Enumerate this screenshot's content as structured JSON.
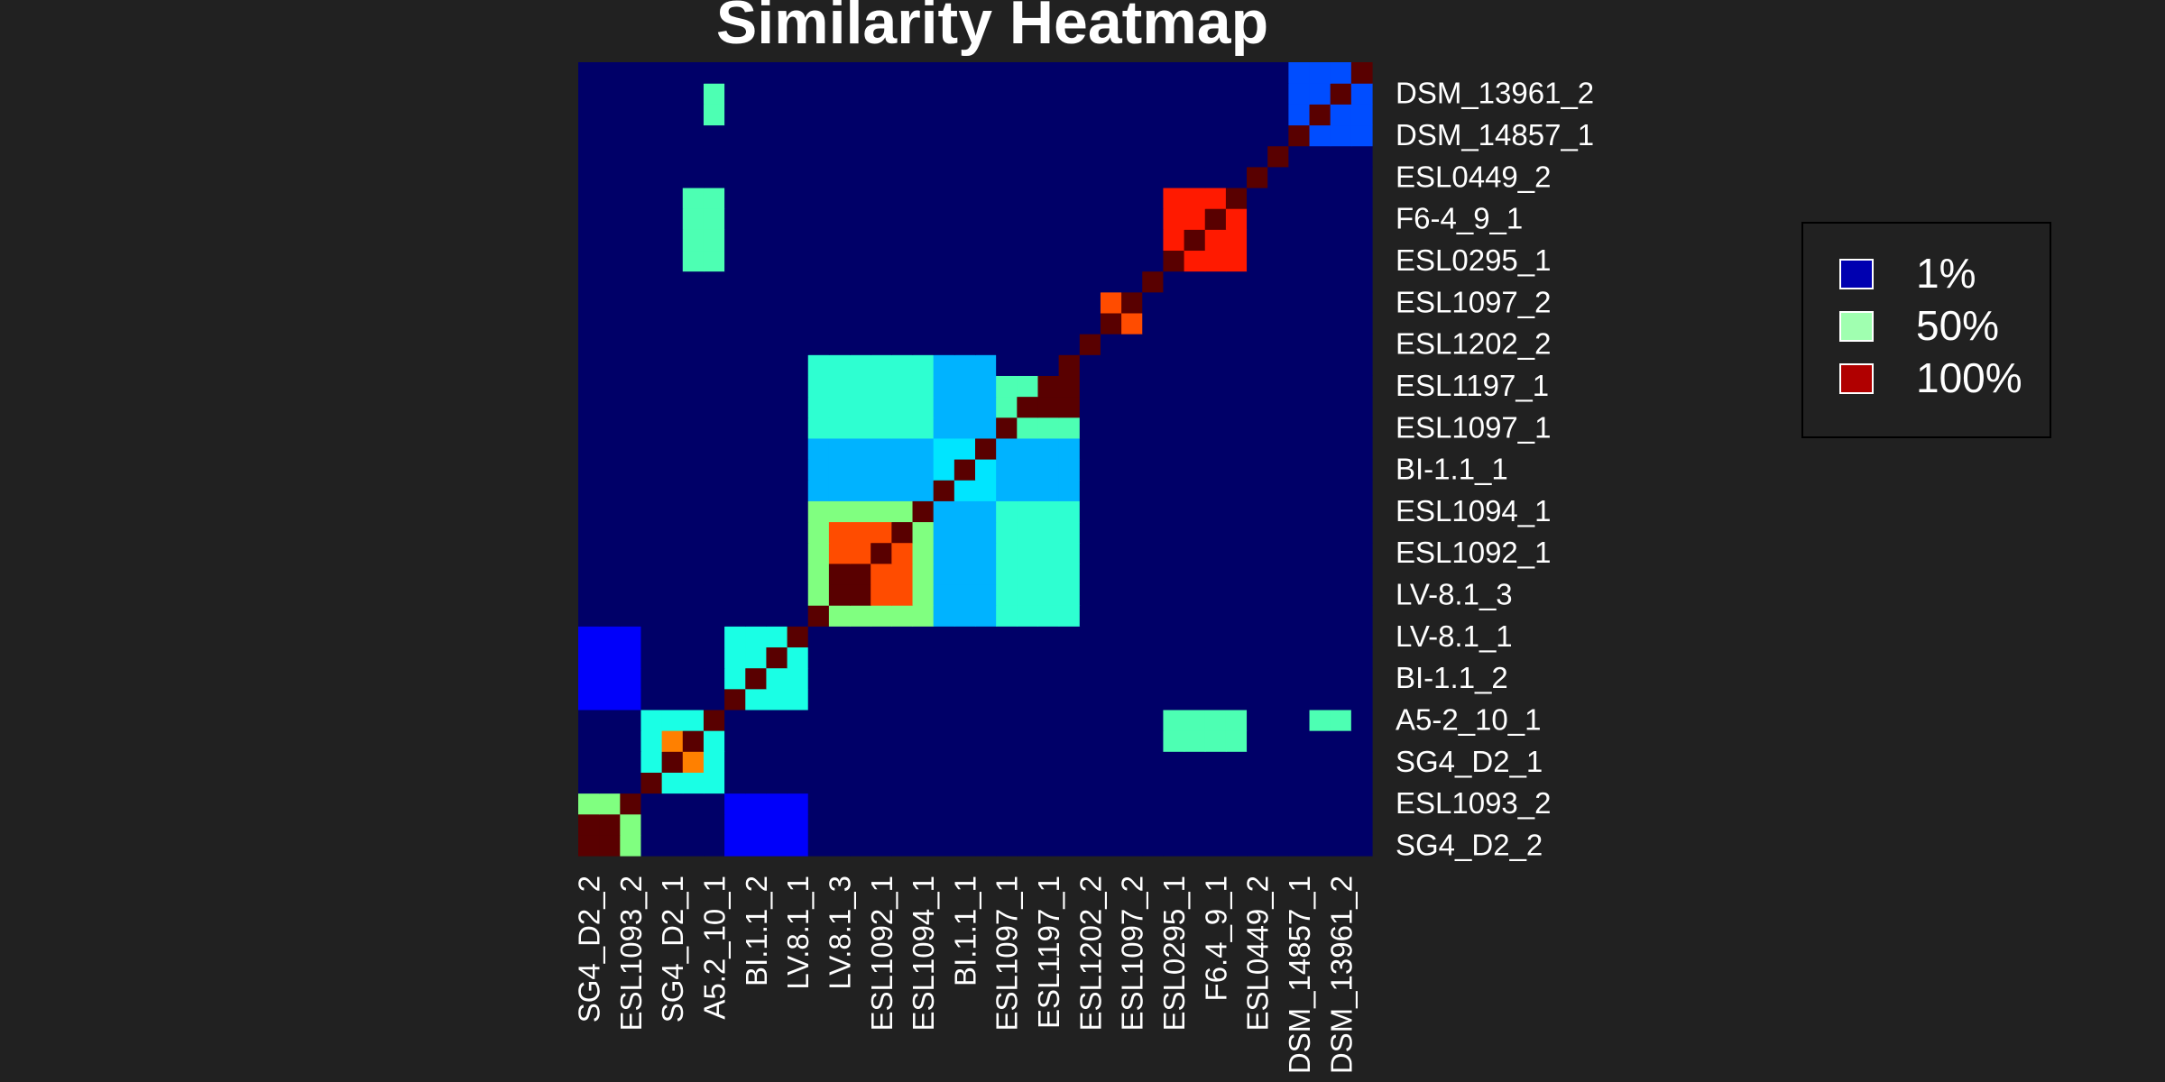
{
  "chart_data": {
    "type": "heatmap",
    "title": "Similarity Heatmap",
    "matrix_size": 38,
    "row_labels_shown": [
      "SG4_D2_2",
      "ESL1093_2",
      "SG4_D2_1",
      "A5-2_10_1",
      "BI-1.1_2",
      "LV-8.1_1",
      "LV-8.1_3",
      "ESL1092_1",
      "ESL1094_1",
      "BI-1.1_1",
      "ESL1097_1",
      "ESL1197_1",
      "ESL1202_2",
      "ESL1097_2",
      "ESL0295_1",
      "F6-4_9_1",
      "ESL0449_2",
      "DSM_14857_1",
      "DSM_13961_2"
    ],
    "col_labels_shown": [
      "SG4_D2_2",
      "ESL1093_2",
      "SG4_D2_1",
      "A5.2_10_1",
      "BI.1.1_2",
      "LV.8.1_1",
      "LV.8.1_3",
      "ESL1092_1",
      "ESL1094_1",
      "BI.1.1_1",
      "ESL1097_1",
      "ESL1197_1",
      "ESL1202_2",
      "ESL1097_2",
      "ESL0295_1",
      "F6.4_9_1",
      "ESL0449_2",
      "DSM_14857_1",
      "DSM_13961_2"
    ],
    "color_scale": {
      "low": "#0000b0",
      "mid": "#a0ffb0",
      "high": "#b00000",
      "colormap": "jet"
    },
    "blocks": [
      {
        "rows": [
          1,
          3
        ],
        "cols": [
          1,
          3
        ],
        "value": 0.5
      },
      {
        "rows": [
          1,
          2
        ],
        "cols": [
          1,
          2
        ],
        "value": 1.0
      },
      {
        "rows": [
          4,
          7
        ],
        "cols": [
          4,
          7
        ],
        "value": 0.4
      },
      {
        "rows": [
          5,
          6
        ],
        "cols": [
          5,
          6
        ],
        "value": 0.75
      },
      {
        "rows": [
          8,
          11
        ],
        "cols": [
          8,
          11
        ],
        "value": 0.4
      },
      {
        "rows": [
          12,
          17
        ],
        "cols": [
          12,
          17
        ],
        "value": 0.5
      },
      {
        "rows": [
          13,
          16
        ],
        "cols": [
          13,
          16
        ],
        "value": 0.8
      },
      {
        "rows": [
          13,
          14
        ],
        "cols": [
          13,
          14
        ],
        "value": 1.0
      },
      {
        "rows": [
          18,
          20
        ],
        "cols": [
          18,
          20
        ],
        "value": 0.35
      },
      {
        "rows": [
          21,
          23
        ],
        "cols": [
          21,
          24
        ],
        "value": 0.45
      },
      {
        "rows": [
          22,
          23
        ],
        "cols": [
          23,
          24
        ],
        "value": 1.0
      },
      {
        "rows": [
          26,
          27
        ],
        "cols": [
          26,
          27
        ],
        "value": 0.8
      },
      {
        "rows": [
          29,
          32
        ],
        "cols": [
          29,
          32
        ],
        "value": 0.85
      },
      {
        "rows": [
          35,
          38
        ],
        "cols": [
          35,
          38
        ],
        "value": 0.2
      }
    ],
    "offdiag": [
      {
        "rows": [
          6,
          7
        ],
        "cols": [
          29,
          32
        ],
        "value": 0.45
      },
      {
        "rows": [
          29,
          32
        ],
        "cols": [
          6,
          7
        ],
        "value": 0.45
      },
      {
        "rows": [
          12,
          17
        ],
        "cols": [
          18,
          20
        ],
        "value": 0.3
      },
      {
        "rows": [
          18,
          20
        ],
        "cols": [
          12,
          17
        ],
        "value": 0.3
      },
      {
        "rows": [
          12,
          17
        ],
        "cols": [
          21,
          24
        ],
        "value": 0.42
      },
      {
        "rows": [
          21,
          24
        ],
        "cols": [
          12,
          17
        ],
        "value": 0.42
      },
      {
        "rows": [
          18,
          20
        ],
        "cols": [
          21,
          24
        ],
        "value": 0.3
      },
      {
        "rows": [
          21,
          24
        ],
        "cols": [
          18,
          20
        ],
        "value": 0.3
      },
      {
        "rows": [
          1,
          3
        ],
        "cols": [
          8,
          11
        ],
        "value": 0.12
      },
      {
        "rows": [
          8,
          11
        ],
        "cols": [
          1,
          3
        ],
        "value": 0.12
      },
      {
        "rows": [
          36,
          37
        ],
        "cols": [
          7,
          7
        ],
        "value": 0.45
      },
      {
        "rows": [
          7,
          7
        ],
        "cols": [
          36,
          37
        ],
        "value": 0.45
      }
    ],
    "diagonal_value": 1.0,
    "background_value": 0.02,
    "legend": {
      "placement": "right",
      "entries": [
        {
          "label": "1%",
          "color": "#0000b0"
        },
        {
          "label": "50%",
          "color": "#a0ffb0"
        },
        {
          "label": "100%",
          "color": "#b00000"
        }
      ]
    }
  },
  "colors": {
    "background": "#212121",
    "text": "#ffffff",
    "legend_border": "#000000"
  }
}
